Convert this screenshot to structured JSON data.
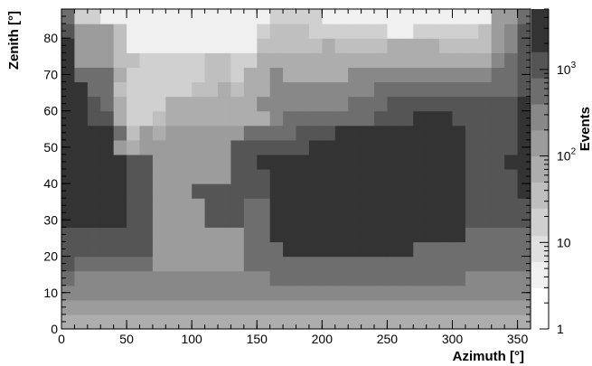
{
  "chart_data": {
    "type": "heatmap",
    "xlabel": "Azimuth [°]",
    "ylabel": "Zenith [°]",
    "colorbar_label": "Events",
    "xlim": [
      0,
      360
    ],
    "ylim": [
      0,
      88
    ],
    "x_bin_width": 10,
    "y_bin_width": 4,
    "x_ticks": [
      "0",
      "50",
      "100",
      "150",
      "200",
      "250",
      "300",
      "350"
    ],
    "x_tick_values": [
      0,
      50,
      100,
      150,
      200,
      250,
      300,
      350
    ],
    "y_ticks": [
      "0",
      "10",
      "20",
      "30",
      "40",
      "50",
      "60",
      "70",
      "80"
    ],
    "y_tick_values": [
      0,
      10,
      20,
      30,
      40,
      50,
      60,
      70,
      80
    ],
    "colorbar_ticks": [
      {
        "value": 1,
        "base": "1",
        "exp": ""
      },
      {
        "value": 10,
        "base": "10",
        "exp": ""
      },
      {
        "value": 100,
        "base": "10",
        "exp": "2"
      },
      {
        "value": 1000,
        "base": "10",
        "exp": "3"
      }
    ],
    "colorbar_range": [
      1,
      5000
    ],
    "colorbar_log": true,
    "color_levels": [
      {
        "upper": 3,
        "color": "#ffffff"
      },
      {
        "upper": 6,
        "color": "#f0f0f0"
      },
      {
        "upper": 12,
        "color": "#e0e0e0"
      },
      {
        "upper": 25,
        "color": "#d0d0d0"
      },
      {
        "upper": 50,
        "color": "#bfbfbf"
      },
      {
        "upper": 100,
        "color": "#adadad"
      },
      {
        "upper": 200,
        "color": "#9c9c9c"
      },
      {
        "upper": 400,
        "color": "#888888"
      },
      {
        "upper": 800,
        "color": "#6e6e6e"
      },
      {
        "upper": 1600,
        "color": "#555555"
      },
      {
        "upper": 100000,
        "color": "#333333"
      }
    ],
    "zenith_bins_lower_edges": [
      0,
      4,
      8,
      12,
      16,
      20,
      24,
      28,
      32,
      36,
      40,
      44,
      48,
      52,
      56,
      60,
      64,
      68,
      72,
      76,
      80,
      84
    ],
    "azimuth_bins_lower_edges": [
      0,
      10,
      20,
      30,
      40,
      50,
      60,
      70,
      80,
      90,
      100,
      110,
      120,
      130,
      140,
      150,
      160,
      170,
      180,
      190,
      200,
      210,
      220,
      230,
      240,
      250,
      260,
      270,
      280,
      290,
      300,
      310,
      320,
      330,
      340,
      350
    ],
    "counts": [
      [
        70,
        70,
        70,
        70,
        70,
        70,
        70,
        70,
        70,
        70,
        70,
        70,
        70,
        70,
        70,
        70,
        70,
        70,
        70,
        70,
        70,
        70,
        70,
        70,
        70,
        70,
        70,
        70,
        70,
        70,
        70,
        70,
        70,
        70,
        70,
        70
      ],
      [
        110,
        110,
        110,
        110,
        110,
        110,
        110,
        110,
        110,
        110,
        110,
        110,
        110,
        110,
        110,
        110,
        110,
        110,
        110,
        110,
        110,
        110,
        110,
        110,
        110,
        110,
        110,
        110,
        110,
        110,
        110,
        110,
        110,
        110,
        110,
        110
      ],
      [
        250,
        250,
        250,
        250,
        250,
        250,
        250,
        250,
        250,
        250,
        250,
        250,
        250,
        250,
        250,
        250,
        250,
        250,
        250,
        250,
        250,
        250,
        250,
        250,
        250,
        250,
        250,
        250,
        250,
        250,
        250,
        250,
        250,
        250,
        250,
        250
      ],
      [
        500,
        250,
        250,
        250,
        250,
        250,
        250,
        250,
        250,
        250,
        250,
        250,
        250,
        250,
        250,
        250,
        500,
        500,
        500,
        500,
        500,
        500,
        500,
        500,
        500,
        500,
        500,
        500,
        500,
        500,
        500,
        250,
        250,
        250,
        250,
        250
      ],
      [
        1000,
        500,
        500,
        500,
        500,
        500,
        500,
        150,
        150,
        150,
        150,
        150,
        150,
        150,
        500,
        500,
        500,
        500,
        500,
        500,
        500,
        500,
        500,
        500,
        500,
        500,
        500,
        500,
        500,
        500,
        500,
        500,
        500,
        500,
        500,
        500
      ],
      [
        1000,
        1000,
        1000,
        1000,
        1000,
        1000,
        1000,
        150,
        150,
        150,
        150,
        150,
        150,
        150,
        500,
        500,
        500,
        3000,
        3000,
        3000,
        3000,
        3000,
        3000,
        3000,
        3000,
        3000,
        3000,
        500,
        500,
        500,
        500,
        500,
        500,
        500,
        500,
        500
      ],
      [
        1000,
        1000,
        1000,
        1000,
        1000,
        1000,
        1000,
        150,
        150,
        150,
        150,
        150,
        150,
        150,
        500,
        500,
        3000,
        3000,
        3000,
        3000,
        3000,
        3000,
        3000,
        3000,
        3000,
        3000,
        3000,
        3000,
        3000,
        3000,
        3000,
        500,
        500,
        500,
        500,
        500
      ],
      [
        3000,
        3000,
        3000,
        3000,
        3000,
        1000,
        1000,
        150,
        150,
        150,
        150,
        1000,
        1000,
        1000,
        500,
        500,
        3000,
        3000,
        3000,
        3000,
        3000,
        3000,
        3000,
        3000,
        3000,
        3000,
        3000,
        3000,
        3000,
        3000,
        3000,
        1000,
        1000,
        1000,
        1000,
        1000
      ],
      [
        3000,
        3000,
        3000,
        3000,
        3000,
        1000,
        1000,
        150,
        150,
        150,
        150,
        1000,
        1000,
        1000,
        500,
        500,
        3000,
        3000,
        3000,
        3000,
        3000,
        3000,
        3000,
        3000,
        3000,
        3000,
        3000,
        3000,
        3000,
        3000,
        3000,
        1000,
        1000,
        1000,
        1000,
        1000
      ],
      [
        3000,
        3000,
        3000,
        3000,
        3000,
        1000,
        1000,
        150,
        150,
        150,
        1000,
        1000,
        1000,
        1000,
        1000,
        1000,
        3000,
        3000,
        3000,
        3000,
        3000,
        3000,
        3000,
        3000,
        3000,
        3000,
        3000,
        3000,
        3000,
        3000,
        3000,
        1000,
        1000,
        1000,
        1000,
        3000
      ],
      [
        3000,
        3000,
        3000,
        3000,
        3000,
        1000,
        1000,
        150,
        150,
        150,
        150,
        150,
        150,
        1000,
        1000,
        1000,
        3000,
        3000,
        3000,
        3000,
        3000,
        3000,
        3000,
        3000,
        3000,
        3000,
        3000,
        3000,
        3000,
        3000,
        3000,
        1000,
        1000,
        1000,
        1000,
        3000
      ],
      [
        3000,
        3000,
        3000,
        3000,
        3000,
        1000,
        1000,
        150,
        150,
        150,
        150,
        150,
        150,
        1000,
        1000,
        3000,
        3000,
        3000,
        3000,
        3000,
        3000,
        3000,
        3000,
        3000,
        3000,
        3000,
        3000,
        3000,
        3000,
        3000,
        3000,
        1000,
        1000,
        1000,
        3000,
        3000
      ],
      [
        3000,
        3000,
        3000,
        3000,
        150,
        100,
        150,
        150,
        150,
        150,
        150,
        150,
        150,
        1000,
        1000,
        1000,
        1000,
        1000,
        1000,
        3000,
        3000,
        3000,
        3000,
        3000,
        3000,
        3000,
        3000,
        3000,
        3000,
        3000,
        3000,
        1000,
        1000,
        1000,
        1000,
        3000
      ],
      [
        3000,
        3000,
        3000,
        3000,
        600,
        40,
        150,
        100,
        150,
        150,
        150,
        150,
        150,
        150,
        600,
        600,
        600,
        600,
        1000,
        1000,
        1000,
        3000,
        3000,
        3000,
        3000,
        3000,
        3000,
        3000,
        3000,
        3000,
        3000,
        1000,
        1000,
        1000,
        1000,
        3000
      ],
      [
        3000,
        3000,
        1000,
        1000,
        100,
        20,
        20,
        40,
        100,
        100,
        100,
        100,
        100,
        100,
        100,
        100,
        300,
        600,
        600,
        600,
        600,
        600,
        600,
        600,
        1000,
        1000,
        1000,
        3000,
        3000,
        3000,
        1000,
        1000,
        1000,
        1000,
        1000,
        3000
      ],
      [
        3000,
        3000,
        1000,
        600,
        100,
        20,
        20,
        20,
        100,
        100,
        100,
        100,
        100,
        100,
        100,
        300,
        300,
        300,
        300,
        300,
        300,
        300,
        600,
        600,
        600,
        1000,
        1000,
        1000,
        1000,
        1000,
        1000,
        1000,
        1000,
        1000,
        1000,
        3000
      ],
      [
        3000,
        3000,
        600,
        600,
        40,
        20,
        20,
        20,
        20,
        20,
        40,
        40,
        100,
        40,
        100,
        100,
        300,
        300,
        300,
        300,
        300,
        300,
        300,
        300,
        600,
        600,
        600,
        600,
        600,
        600,
        600,
        600,
        600,
        600,
        600,
        1000
      ],
      [
        3000,
        600,
        600,
        600,
        100,
        20,
        20,
        20,
        20,
        20,
        20,
        40,
        40,
        20,
        100,
        100,
        300,
        100,
        100,
        100,
        100,
        100,
        300,
        300,
        300,
        300,
        300,
        300,
        300,
        300,
        300,
        300,
        300,
        600,
        600,
        1000
      ],
      [
        3000,
        200,
        200,
        200,
        40,
        40,
        20,
        20,
        20,
        20,
        20,
        40,
        40,
        20,
        20,
        100,
        100,
        100,
        100,
        100,
        100,
        100,
        100,
        100,
        100,
        100,
        100,
        100,
        100,
        100,
        100,
        100,
        100,
        300,
        600,
        1000
      ],
      [
        3000,
        200,
        200,
        200,
        40,
        4,
        4,
        4,
        4,
        4,
        4,
        4,
        4,
        4,
        4,
        40,
        40,
        40,
        40,
        40,
        100,
        40,
        40,
        40,
        40,
        100,
        100,
        100,
        100,
        40,
        40,
        40,
        40,
        150,
        300,
        1000
      ],
      [
        1000,
        200,
        200,
        200,
        40,
        4,
        4,
        4,
        4,
        4,
        4,
        4,
        4,
        4,
        4,
        20,
        40,
        40,
        40,
        20,
        20,
        20,
        20,
        20,
        20,
        4,
        4,
        20,
        20,
        20,
        20,
        20,
        30,
        150,
        300,
        1000
      ],
      [
        600,
        20,
        20,
        4,
        4,
        4,
        4,
        4,
        4,
        4,
        4,
        4,
        4,
        4,
        4,
        4,
        20,
        20,
        20,
        20,
        4,
        4,
        4,
        4,
        4,
        4,
        4,
        4,
        4,
        4,
        4,
        4,
        4,
        150,
        150,
        600
      ]
    ]
  }
}
